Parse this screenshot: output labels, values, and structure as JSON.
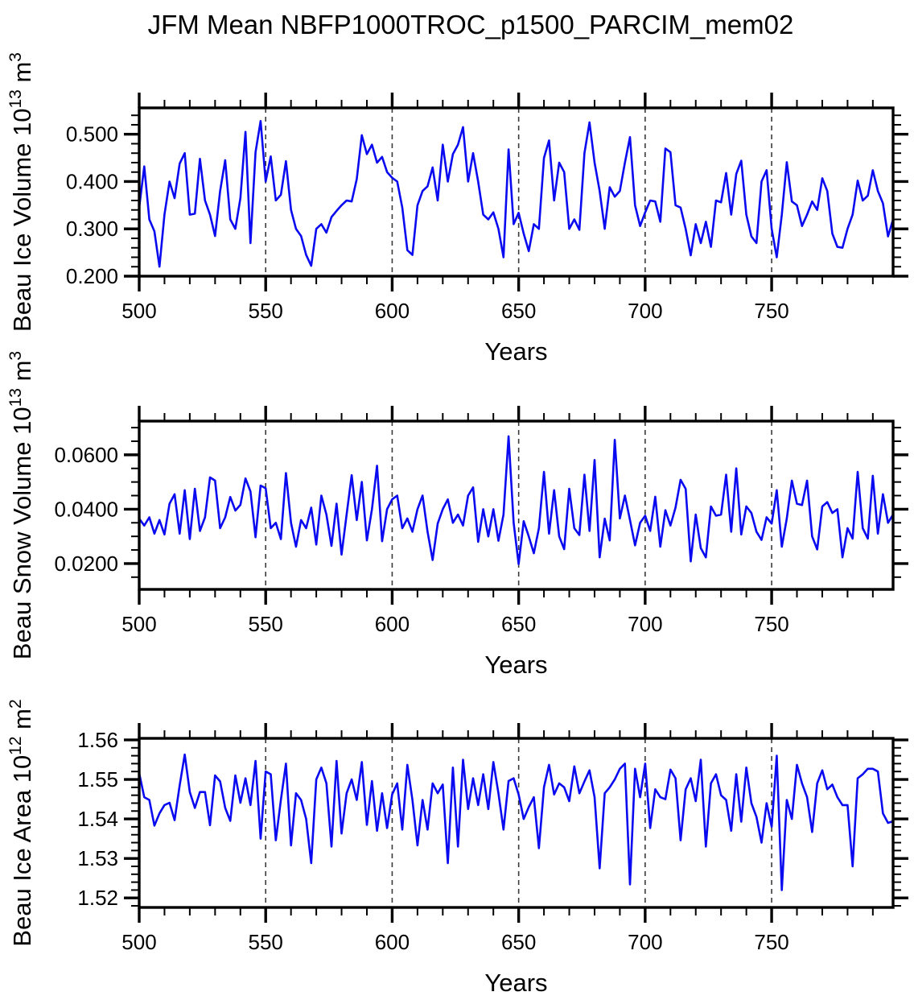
{
  "title": "JFM Mean NBFP1000TROC_p1500_PARCIM_mem02",
  "line_color": "#0a0af0",
  "grid_color": "#3a3a3a",
  "axis_color": "#000000",
  "chart_data": [
    {
      "type": "line",
      "id": "beau-ice-volume",
      "ylabel_segments": [
        {
          "t": "Beau Ice Volume 10"
        },
        {
          "t": "13",
          "sup": true
        },
        {
          "t": " m"
        },
        {
          "t": "3",
          "sup": true
        }
      ],
      "xlabel": "Years",
      "xlim": [
        500,
        798
      ],
      "ylim": [
        0.2,
        0.5557
      ],
      "x_major_ticks": [
        {
          "value": 500,
          "label": "500"
        },
        {
          "value": 550,
          "label": "550"
        },
        {
          "value": 600,
          "label": "600"
        },
        {
          "value": 650,
          "label": "650"
        },
        {
          "value": 700,
          "label": "700"
        },
        {
          "value": 750,
          "label": "750"
        }
      ],
      "x_minor_step": 10,
      "y_major_ticks": [
        {
          "value": 0.2,
          "label": "0.200"
        },
        {
          "value": 0.3,
          "label": "0.300"
        },
        {
          "value": 0.4,
          "label": "0.400"
        },
        {
          "value": 0.5,
          "label": "0.500"
        }
      ],
      "y_minor_step": 0.02,
      "grid_x": [
        550,
        600,
        650,
        700,
        750
      ],
      "x_start": 500,
      "x_step": 2,
      "values": [
        0.345,
        0.432,
        0.32,
        0.295,
        0.22,
        0.33,
        0.4,
        0.365,
        0.438,
        0.46,
        0.33,
        0.332,
        0.448,
        0.36,
        0.33,
        0.285,
        0.38,
        0.445,
        0.32,
        0.3,
        0.365,
        0.505,
        0.27,
        0.462,
        0.528,
        0.4,
        0.453,
        0.36,
        0.372,
        0.443,
        0.34,
        0.3,
        0.285,
        0.245,
        0.222,
        0.3,
        0.31,
        0.292,
        0.325,
        0.338,
        0.35,
        0.36,
        0.358,
        0.405,
        0.498,
        0.458,
        0.478,
        0.44,
        0.452,
        0.42,
        0.408,
        0.4,
        0.345,
        0.255,
        0.245,
        0.35,
        0.38,
        0.39,
        0.43,
        0.36,
        0.478,
        0.4,
        0.458,
        0.478,
        0.515,
        0.4,
        0.46,
        0.4,
        0.33,
        0.32,
        0.335,
        0.3,
        0.24,
        0.468,
        0.31,
        0.334,
        0.29,
        0.253,
        0.31,
        0.3,
        0.45,
        0.487,
        0.36,
        0.44,
        0.42,
        0.3,
        0.32,
        0.298,
        0.46,
        0.525,
        0.44,
        0.38,
        0.3,
        0.388,
        0.368,
        0.38,
        0.44,
        0.494,
        0.35,
        0.306,
        0.335,
        0.36,
        0.358,
        0.315,
        0.47,
        0.462,
        0.35,
        0.345,
        0.3,
        0.244,
        0.31,
        0.27,
        0.315,
        0.262,
        0.36,
        0.356,
        0.418,
        0.33,
        0.416,
        0.444,
        0.33,
        0.284,
        0.27,
        0.4,
        0.424,
        0.3,
        0.24,
        0.33,
        0.441,
        0.358,
        0.35,
        0.306,
        0.33,
        0.358,
        0.34,
        0.407,
        0.38,
        0.29,
        0.262,
        0.26,
        0.3,
        0.33,
        0.402,
        0.36,
        0.37,
        0.424,
        0.38,
        0.354,
        0.284,
        0.32
      ]
    },
    {
      "type": "line",
      "id": "beau-snow-volume",
      "ylabel_segments": [
        {
          "t": "Beau Snow Volume 10"
        },
        {
          "t": "13",
          "sup": true
        },
        {
          "t": " m"
        },
        {
          "t": "3",
          "sup": true
        }
      ],
      "xlabel": "Years",
      "xlim": [
        500,
        798
      ],
      "ylim": [
        0.0105,
        0.0724
      ],
      "x_major_ticks": [
        {
          "value": 500,
          "label": "500"
        },
        {
          "value": 550,
          "label": "550"
        },
        {
          "value": 600,
          "label": "600"
        },
        {
          "value": 650,
          "label": "650"
        },
        {
          "value": 700,
          "label": "700"
        },
        {
          "value": 750,
          "label": "750"
        }
      ],
      "x_minor_step": 10,
      "y_major_ticks": [
        {
          "value": 0.02,
          "label": "0.0200"
        },
        {
          "value": 0.04,
          "label": "0.0400"
        },
        {
          "value": 0.06,
          "label": "0.0600"
        }
      ],
      "y_minor_step": 0.005,
      "grid_x": [
        550,
        600,
        650,
        700,
        750
      ],
      "x_start": 500,
      "x_step": 2,
      "values": [
        0.0365,
        0.034,
        0.037,
        0.031,
        0.036,
        0.0307,
        0.042,
        0.0455,
        0.031,
        0.047,
        0.029,
        0.0475,
        0.032,
        0.037,
        0.0517,
        0.0505,
        0.033,
        0.037,
        0.0445,
        0.0395,
        0.0416,
        0.0513,
        0.0465,
        0.0297,
        0.0487,
        0.0477,
        0.033,
        0.035,
        0.029,
        0.0533,
        0.035,
        0.0262,
        0.036,
        0.033,
        0.0406,
        0.027,
        0.045,
        0.038,
        0.0265,
        0.042,
        0.0233,
        0.038,
        0.0525,
        0.036,
        0.05,
        0.0285,
        0.04,
        0.056,
        0.0282,
        0.04,
        0.0436,
        0.045,
        0.033,
        0.0366,
        0.0317,
        0.04,
        0.045,
        0.0317,
        0.0213,
        0.0347,
        0.04,
        0.0436,
        0.035,
        0.038,
        0.034,
        0.045,
        0.048,
        0.028,
        0.04,
        0.03,
        0.04,
        0.0284,
        0.038,
        0.0668,
        0.035,
        0.0198,
        0.0356,
        0.03,
        0.0238,
        0.033,
        0.0537,
        0.031,
        0.047,
        0.03,
        0.0253,
        0.0475,
        0.033,
        0.0305,
        0.0527,
        0.032,
        0.0581,
        0.0223,
        0.0365,
        0.0285,
        0.0655,
        0.0366,
        0.045,
        0.036,
        0.0267,
        0.035,
        0.0376,
        0.032,
        0.0446,
        0.0262,
        0.0396,
        0.034,
        0.0406,
        0.0508,
        0.0475,
        0.0208,
        0.038,
        0.0257,
        0.0223,
        0.041,
        0.0376,
        0.038,
        0.0527,
        0.0317,
        0.055,
        0.0307,
        0.041,
        0.0386,
        0.0317,
        0.0287,
        0.037,
        0.0347,
        0.047,
        0.0262,
        0.0366,
        0.0505,
        0.042,
        0.0415,
        0.0505,
        0.03,
        0.0252,
        0.041,
        0.0426,
        0.0386,
        0.04,
        0.0223,
        0.033,
        0.0292,
        0.0537,
        0.033,
        0.0292,
        0.0523,
        0.031,
        0.0455,
        0.035,
        0.038
      ]
    },
    {
      "type": "line",
      "id": "beau-ice-area",
      "ylabel_segments": [
        {
          "t": "Beau Ice Area 10"
        },
        {
          "t": "12",
          "sup": true
        },
        {
          "t": " m"
        },
        {
          "t": "2",
          "sup": true
        }
      ],
      "xlabel": "Years",
      "xlim": [
        500,
        798
      ],
      "ylim": [
        1.5176,
        1.5604
      ],
      "x_major_ticks": [
        {
          "value": 500,
          "label": "500"
        },
        {
          "value": 550,
          "label": "550"
        },
        {
          "value": 600,
          "label": "600"
        },
        {
          "value": 650,
          "label": "650"
        },
        {
          "value": 700,
          "label": "700"
        },
        {
          "value": 750,
          "label": "750"
        }
      ],
      "x_minor_step": 10,
      "y_major_ticks": [
        {
          "value": 1.52,
          "label": "1.52"
        },
        {
          "value": 1.53,
          "label": "1.53"
        },
        {
          "value": 1.54,
          "label": "1.54"
        },
        {
          "value": 1.55,
          "label": "1.55"
        },
        {
          "value": 1.56,
          "label": "1.56"
        }
      ],
      "y_minor_step": 0.002,
      "grid_x": [
        550,
        600,
        650,
        700,
        750
      ],
      "x_start": 500,
      "x_step": 2,
      "values": [
        1.5516,
        1.5455,
        1.5448,
        1.5383,
        1.5414,
        1.5435,
        1.5441,
        1.5397,
        1.5485,
        1.5563,
        1.5468,
        1.5428,
        1.5468,
        1.5468,
        1.5384,
        1.551,
        1.5495,
        1.5428,
        1.5395,
        1.551,
        1.5441,
        1.5503,
        1.5435,
        1.5547,
        1.535,
        1.552,
        1.5513,
        1.5346,
        1.5448,
        1.554,
        1.5333,
        1.5465,
        1.5448,
        1.54,
        1.5288,
        1.55,
        1.553,
        1.549,
        1.533,
        1.5547,
        1.5363,
        1.5465,
        1.55,
        1.5448,
        1.5544,
        1.5385,
        1.5496,
        1.537,
        1.5465,
        1.5377,
        1.5462,
        1.549,
        1.5373,
        1.5537,
        1.5448,
        1.5333,
        1.5448,
        1.5373,
        1.549,
        1.5465,
        1.5487,
        1.5288,
        1.553,
        1.533,
        1.555,
        1.5425,
        1.5503,
        1.5435,
        1.5513,
        1.5425,
        1.5544,
        1.5465,
        1.5373,
        1.5496,
        1.5503,
        1.5462,
        1.54,
        1.543,
        1.5455,
        1.5326,
        1.548,
        1.5537,
        1.5462,
        1.549,
        1.548,
        1.5445,
        1.5533,
        1.5465,
        1.5495,
        1.5523,
        1.5455,
        1.5275,
        1.5465,
        1.548,
        1.55,
        1.5527,
        1.554,
        1.5234,
        1.5527,
        1.5455,
        1.554,
        1.5377,
        1.5475,
        1.5455,
        1.545,
        1.5525,
        1.5503,
        1.5346,
        1.5475,
        1.5503,
        1.5445,
        1.555,
        1.533,
        1.549,
        1.5513,
        1.546,
        1.5448,
        1.537,
        1.5513,
        1.5393,
        1.553,
        1.544,
        1.5405,
        1.534,
        1.544,
        1.538,
        1.556,
        1.522,
        1.5448,
        1.54,
        1.5537,
        1.549,
        1.5455,
        1.5367,
        1.549,
        1.5523,
        1.5475,
        1.5487,
        1.5455,
        1.5435,
        1.5435,
        1.528,
        1.5503,
        1.5513,
        1.5527,
        1.5527,
        1.552,
        1.5414,
        1.539,
        1.5394
      ]
    }
  ]
}
